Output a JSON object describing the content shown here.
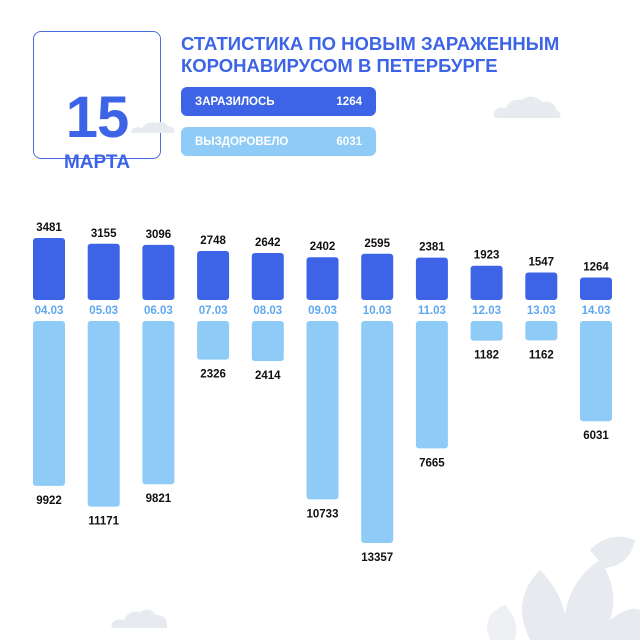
{
  "header": {
    "day": "15",
    "month": "МАРТА",
    "title_line1": "СТАТИСТИКА ПО НОВЫМ ЗАРАЖЕННЫМ",
    "title_line2": "КОРОНАВИРУСОМ В ПЕТЕРБУРГЕ"
  },
  "legend": {
    "infected_label": "ЗАРАЗИЛОСЬ",
    "infected_value": "1264",
    "recovered_label": "ВЫЗДОРОВЕЛО",
    "recovered_value": "6031"
  },
  "colors": {
    "accent": "#3d64e6",
    "infected": "#3d64e6",
    "recovered": "#8fcbf7",
    "date_label": "#5fa8f0",
    "value_text": "#111111",
    "decor": "#e7eaee"
  },
  "chart_data": {
    "type": "bar",
    "categories": [
      "04.03",
      "05.03",
      "06.03",
      "07.03",
      "08.03",
      "09.03",
      "10.03",
      "11.03",
      "12.03",
      "13.03",
      "14.03"
    ],
    "series": [
      {
        "name": "ЗАРАЗИЛОСЬ",
        "values": [
          3481,
          3155,
          3096,
          2748,
          2642,
          2402,
          2595,
          2381,
          1923,
          1547,
          1264
        ]
      },
      {
        "name": "ВЫЗДОРОВЕЛО",
        "values": [
          9922,
          11171,
          9821,
          2326,
          2414,
          10733,
          13357,
          7665,
          1182,
          1162,
          6031
        ]
      }
    ],
    "title": "СТАТИСТИКА ПО НОВЫМ ЗАРАЖЕННЫМ КОРОНАВИРУСОМ В ПЕТЕРБУРГЕ",
    "grid": false,
    "legend_position": "top"
  }
}
